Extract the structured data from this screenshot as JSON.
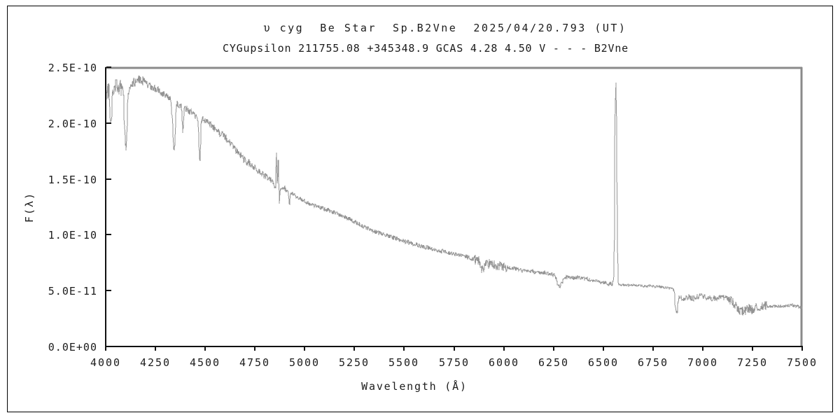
{
  "window": {
    "background": "#ffffff",
    "outer_border_color": "#000000"
  },
  "chart_data": {
    "type": "line",
    "title_line1": "υ cyg  Be Star  Sp.B2Vne  2025/04/20.793 (UT)",
    "title_line2": "CYGupsilon 211755.08 +345348.9 GCAS 4.28 4.50 V - - - B2Vne",
    "xlabel": "Wavelength (Å)",
    "ylabel": "F(λ)",
    "xlim": [
      4000,
      7500
    ],
    "ylim_e11": [
      0,
      25
    ],
    "flux_unit_scale": "1E-11",
    "grid": false,
    "legend": "none",
    "line_color": "#949494",
    "frame_color": "#8a8a8a",
    "axis_color": "#111111",
    "x_ticks": [
      4000,
      4250,
      4500,
      4750,
      5000,
      5250,
      5500,
      5750,
      6000,
      6250,
      6500,
      6750,
      7000,
      7250,
      7500
    ],
    "x_tick_labels": [
      "4000",
      "4250",
      "4500",
      "4750",
      "5000",
      "5250",
      "5500",
      "5750",
      "6000",
      "6250",
      "6500",
      "6750",
      "7000",
      "7250",
      "7500"
    ],
    "y_ticks": [
      {
        "value_e11": 0,
        "label": "0.0E+00"
      },
      {
        "value_e11": 5,
        "label": "5.0E-11"
      },
      {
        "value_e11": 10,
        "label": "1.0E-10"
      },
      {
        "value_e11": 15,
        "label": "1.5E-10"
      },
      {
        "value_e11": 20,
        "label": "2.0E-10"
      },
      {
        "value_e11": 25,
        "label": "2.5E-10"
      }
    ],
    "continuum_e11": [
      [
        4000,
        22.6
      ],
      [
        4050,
        23.4
      ],
      [
        4100,
        22.8
      ],
      [
        4150,
        23.8
      ],
      [
        4175,
        24.0
      ],
      [
        4200,
        23.5
      ],
      [
        4250,
        23.1
      ],
      [
        4300,
        22.5
      ],
      [
        4350,
        21.9
      ],
      [
        4400,
        21.3
      ],
      [
        4450,
        20.7
      ],
      [
        4500,
        20.2
      ],
      [
        4550,
        19.5
      ],
      [
        4600,
        18.7
      ],
      [
        4650,
        17.7
      ],
      [
        4700,
        16.7
      ],
      [
        4750,
        16.0
      ],
      [
        4800,
        15.3
      ],
      [
        4861,
        14.6
      ],
      [
        4900,
        14.1
      ],
      [
        4950,
        13.5
      ],
      [
        5000,
        13.0
      ],
      [
        5050,
        12.6
      ],
      [
        5100,
        12.3
      ],
      [
        5150,
        12.0
      ],
      [
        5200,
        11.6
      ],
      [
        5250,
        11.2
      ],
      [
        5300,
        10.7
      ],
      [
        5350,
        10.3
      ],
      [
        5400,
        10.0
      ],
      [
        5450,
        9.7
      ],
      [
        5500,
        9.4
      ],
      [
        5550,
        9.2
      ],
      [
        5600,
        8.9
      ],
      [
        5650,
        8.7
      ],
      [
        5700,
        8.5
      ],
      [
        5750,
        8.3
      ],
      [
        5800,
        8.1
      ],
      [
        5850,
        7.8
      ],
      [
        5900,
        7.5
      ],
      [
        5950,
        7.3
      ],
      [
        6000,
        7.1
      ],
      [
        6050,
        7.0
      ],
      [
        6100,
        6.8
      ],
      [
        6150,
        6.7
      ],
      [
        6200,
        6.6
      ],
      [
        6250,
        6.4
      ],
      [
        6300,
        6.2
      ],
      [
        6350,
        6.2
      ],
      [
        6400,
        6.1
      ],
      [
        6450,
        5.9
      ],
      [
        6500,
        5.7
      ],
      [
        6550,
        5.6
      ],
      [
        6600,
        5.5
      ],
      [
        6650,
        5.5
      ],
      [
        6700,
        5.4
      ],
      [
        6750,
        5.4
      ],
      [
        6800,
        5.3
      ],
      [
        6850,
        5.2
      ],
      [
        6900,
        4.2
      ],
      [
        6925,
        4.4
      ],
      [
        6950,
        4.3
      ],
      [
        6975,
        4.5
      ],
      [
        7000,
        4.5
      ],
      [
        7025,
        4.3
      ],
      [
        7050,
        4.3
      ],
      [
        7075,
        4.4
      ],
      [
        7100,
        4.4
      ],
      [
        7125,
        4.3
      ],
      [
        7150,
        4.0
      ],
      [
        7175,
        3.4
      ],
      [
        7200,
        3.1
      ],
      [
        7225,
        3.3
      ],
      [
        7250,
        3.3
      ],
      [
        7275,
        3.5
      ],
      [
        7300,
        3.6
      ],
      [
        7350,
        3.6
      ],
      [
        7400,
        3.6
      ],
      [
        7450,
        3.7
      ],
      [
        7500,
        3.5
      ]
    ],
    "features": [
      {
        "name": "He I 4026 absorption",
        "wavelength": 4026,
        "kind": "absorption",
        "amplitude_e11": 3.3,
        "sigma": 3.5
      },
      {
        "name": "H-delta 4101 absorption",
        "wavelength": 4101,
        "kind": "absorption",
        "amplitude_e11": 5.0,
        "sigma": 6
      },
      {
        "name": "H-gamma 4340 absorption",
        "wavelength": 4343,
        "kind": "absorption",
        "amplitude_e11": 4.6,
        "sigma": 6
      },
      {
        "name": "He I 4388 absorption",
        "wavelength": 4388,
        "kind": "absorption",
        "amplitude_e11": 2.2,
        "sigma": 3.5
      },
      {
        "name": "He I 4471 absorption",
        "wavelength": 4472,
        "kind": "absorption",
        "amplitude_e11": 3.8,
        "sigma": 4.5
      },
      {
        "name": "H-beta 4861 trough",
        "wavelength": 4861,
        "kind": "absorption",
        "amplitude_e11": 1.1,
        "sigma": 12
      },
      {
        "name": "H-beta emission blue peak",
        "wavelength": 4857,
        "kind": "emission",
        "amplitude_e11": 3.6,
        "sigma": 2.2
      },
      {
        "name": "H-beta emission red peak",
        "wavelength": 4866,
        "kind": "emission",
        "amplitude_e11": 3.4,
        "sigma": 2.2
      },
      {
        "name": "H-beta red notch",
        "wavelength": 4873,
        "kind": "absorption",
        "amplitude_e11": 1.2,
        "sigma": 2
      },
      {
        "name": "He I 4922 absorption",
        "wavelength": 4922,
        "kind": "absorption",
        "amplitude_e11": 1.0,
        "sigma": 3
      },
      {
        "name": "Na D 5893 absorption",
        "wavelength": 5893,
        "kind": "absorption",
        "amplitude_e11": 0.7,
        "sigma": 5
      },
      {
        "name": "O2 telluric 6280 band",
        "wavelength": 6280,
        "kind": "absorption",
        "amplitude_e11": 0.9,
        "sigma": 12
      },
      {
        "name": "H-alpha 6563 emission",
        "wavelength": 6563,
        "kind": "emission",
        "amplitude_e11": 18.1,
        "sigma": 4.5
      },
      {
        "name": "O2 telluric B band 6870",
        "wavelength": 6868,
        "kind": "absorption",
        "amplitude_e11": 1.9,
        "sigma": 6
      }
    ],
    "noise_regions": [
      {
        "from": 4000,
        "to": 4080,
        "amp": 0.75
      },
      {
        "from": 4080,
        "to": 4200,
        "amp": 0.45
      },
      {
        "from": 4200,
        "to": 4900,
        "amp": 0.33
      },
      {
        "from": 4900,
        "to": 5850,
        "amp": 0.2
      },
      {
        "from": 5850,
        "to": 6020,
        "amp": 0.45
      },
      {
        "from": 6020,
        "to": 6560,
        "amp": 0.18
      },
      {
        "from": 6560,
        "to": 6850,
        "amp": 0.1
      },
      {
        "from": 6850,
        "to": 7130,
        "amp": 0.25
      },
      {
        "from": 7130,
        "to": 7320,
        "amp": 0.45
      },
      {
        "from": 7320,
        "to": 7500,
        "amp": 0.12
      }
    ],
    "noise_seed": 20250420
  }
}
